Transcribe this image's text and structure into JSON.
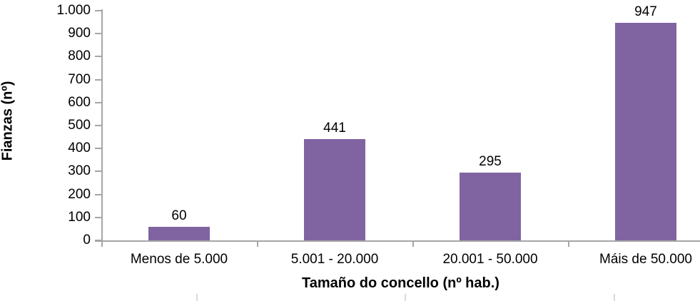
{
  "chart_data": {
    "type": "bar",
    "title": "",
    "xlabel": "Tamaño do concello (nº hab.)",
    "ylabel": "Fianzas (nº)",
    "categories": [
      "Menos de 5.000",
      "5.001 - 20.000",
      "20.001 - 50.000",
      "Máis de 50.000"
    ],
    "values": [
      60,
      441,
      295,
      947
    ],
    "data_labels": [
      "60",
      "441",
      "295",
      "947"
    ],
    "ylim": [
      0,
      1000
    ],
    "ytick_step": 100,
    "ytick_labels": [
      "0",
      "100",
      "200",
      "300",
      "400",
      "500",
      "600",
      "700",
      "800",
      "900",
      "1.000"
    ],
    "grid": false,
    "legend_position": "none",
    "bar_color": "#8064a2",
    "axis_color": "#a6a6a6",
    "text_color": "#000000",
    "background_color": "#ffffff"
  }
}
